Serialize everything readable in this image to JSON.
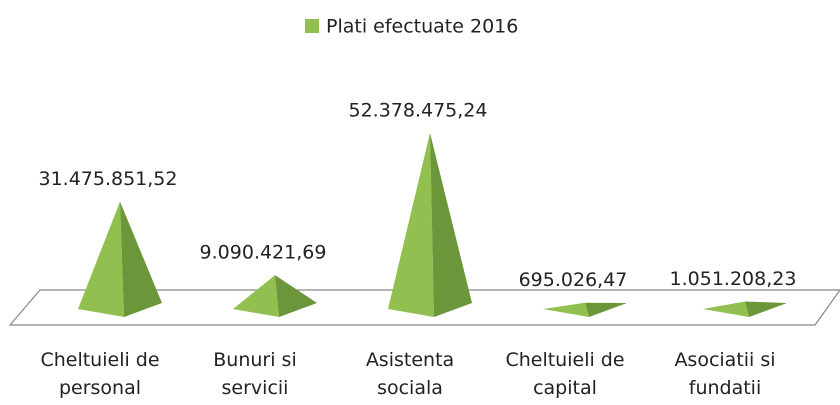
{
  "chart_data": {
    "type": "pyramid",
    "categories": [
      "Cheltuieli de personal",
      "Bunuri si servicii",
      "Asistenta sociala",
      "Cheltuieli de capital",
      "Asociatii si fundatii"
    ],
    "series": [
      {
        "name": "Plati efectuate 2016",
        "color": "#92c050",
        "shade": "#6b9639",
        "values": [
          31475851.52,
          9090421.69,
          52378475.24,
          695026.47,
          1051208.23
        ],
        "value_labels": [
          "31.475.851,52",
          "9.090.421,69",
          "52.378.475,24",
          "695.026,47",
          "1.051.208,23"
        ]
      }
    ],
    "legend": "top"
  }
}
